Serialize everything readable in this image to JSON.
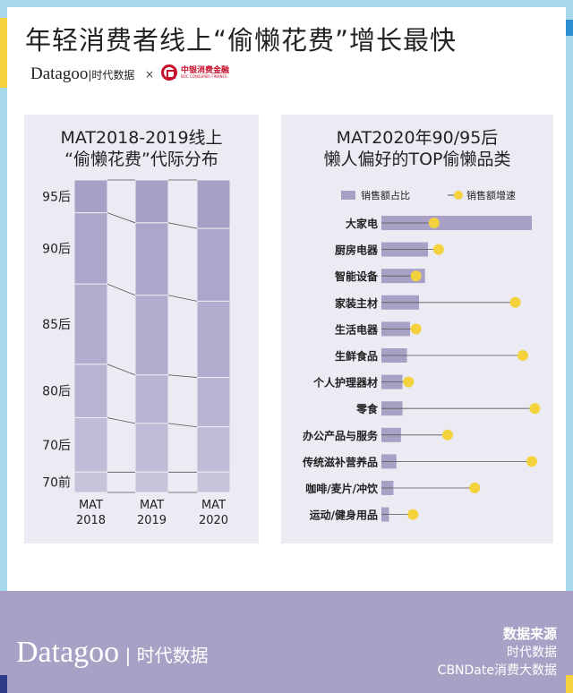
{
  "title": "年轻消费者线上“偷懒花费”增长最快",
  "brand": {
    "name": "Datagoo",
    "cn": "时代数据",
    "x": "×",
    "partner": "中银消费金融",
    "partner_en": "BOC CONSUMER FINANCE"
  },
  "colors": {
    "border": "#a8d8ec",
    "bar": "#a9a1c5",
    "dot": "#f3d23e",
    "footer": "#a9a1c5"
  },
  "chart_data": [
    {
      "type": "bar",
      "stacked": true,
      "normalized": true,
      "title_line1": "MAT2018-2019线上",
      "title_line2": "“偷懒花费”代际分布",
      "categories": [
        "MAT 2018",
        "MAT 2019",
        "MAT 2020"
      ],
      "category_lines": [
        [
          "MAT",
          "2018"
        ],
        [
          "MAT",
          "2019"
        ],
        [
          "MAT",
          "2020"
        ]
      ],
      "series": [
        {
          "name": "95后",
          "values": [
            10.5,
            13.7,
            15.5
          ],
          "color": "#a7a0c6"
        },
        {
          "name": "90后",
          "values": [
            22.8,
            23.2,
            23.3
          ],
          "color": "#ada6ca"
        },
        {
          "name": "85后",
          "values": [
            25.7,
            25.5,
            24.4
          ],
          "color": "#b3acce"
        },
        {
          "name": "80后",
          "values": [
            17.1,
            15.5,
            15.8
          ],
          "color": "#bab3d2"
        },
        {
          "name": "70后",
          "values": [
            17.4,
            15.6,
            14.5
          ],
          "color": "#c1bbd7"
        },
        {
          "name": "70前",
          "values": [
            6.5,
            6.5,
            6.5
          ],
          "color": "#c8c2db"
        }
      ],
      "ylim": [
        0,
        100
      ]
    },
    {
      "type": "bar",
      "orientation": "horizontal",
      "title_line1": "MAT2020年90/95后",
      "title_line2": "懒人偏好的TOP偷懒品类",
      "legend": {
        "bar": "销售额占比",
        "dot": "销售额增速"
      },
      "categories": [
        "大家电",
        "厨房电器",
        "智能设备",
        "家装主材",
        "生活电器",
        "生鲜食品",
        "个人护理器材",
        "零食",
        "办公产品与服务",
        "传统滋补营养品",
        "咖啡/麦片/冲饮",
        "运动/健身用品"
      ],
      "series": [
        {
          "name": "销售额占比",
          "type": "bar",
          "values": [
            100,
            31,
            29,
            25,
            19,
            17,
            14,
            14,
            13,
            10,
            8,
            5
          ]
        },
        {
          "name": "销售额增速",
          "type": "lollipop",
          "values": [
            35,
            38,
            23,
            89,
            23,
            94,
            18,
            102,
            44,
            100,
            62,
            21
          ]
        }
      ],
      "note": "relative units, no axis printed"
    }
  ],
  "footer": {
    "brand": "Datagoo",
    "brand_cn": "时代数据",
    "source_label": "数据来源",
    "sources": [
      "时代数据",
      "CBNDate消费大数据"
    ]
  }
}
